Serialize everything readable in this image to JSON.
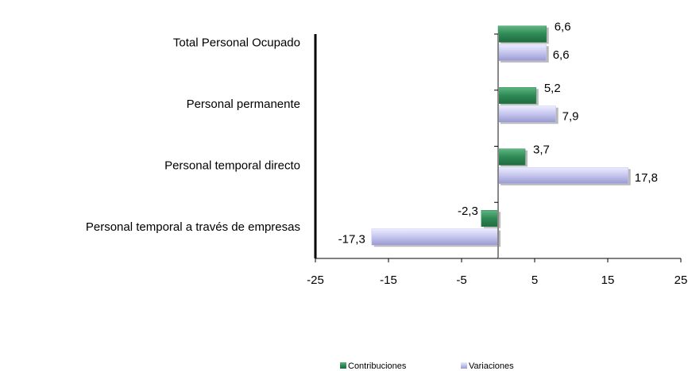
{
  "chart_data": {
    "type": "hbar",
    "categories": [
      "Total Personal  Ocupado",
      "Personal permanente",
      "Personal temporal directo",
      "Personal temporal a través de empresas"
    ],
    "series": [
      {
        "name": "Contribuciones",
        "color": "#2f8a55",
        "values": [
          6.6,
          5.2,
          3.7,
          -2.3
        ],
        "value_labels": [
          "6,6",
          "5,2",
          "3,7",
          "-2,3"
        ]
      },
      {
        "name": "Variaciones",
        "color": "#c4c4ee",
        "values": [
          6.6,
          7.9,
          17.8,
          -17.3
        ],
        "value_labels": [
          "6,6",
          "7,9",
          "17,8",
          "-17,3"
        ]
      }
    ],
    "xlim": [
      -25,
      25
    ],
    "xticks": [
      -25,
      -15,
      -5,
      5,
      15,
      25
    ],
    "legend": "bottom"
  }
}
